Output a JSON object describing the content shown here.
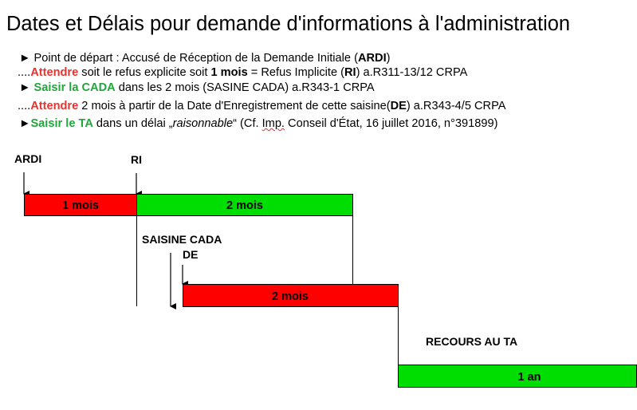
{
  "title": "Dates et Délais pour demande d'informations à l'administration",
  "lines": [
    {
      "prefix": "► ",
      "parts": [
        {
          "text": "Point de départ : Accusé de Réception de la Demande Initiale (",
          "style": ""
        },
        {
          "text": "ARDI",
          "style": "b"
        },
        {
          "text": ")",
          "style": ""
        }
      ]
    },
    {
      "prefix": "....",
      "parts": [
        {
          "text": "Attendre",
          "style": "red"
        },
        {
          "text": " soit le refus explicite soit ",
          "style": ""
        },
        {
          "text": "1 mois",
          "style": "b"
        },
        {
          "text": " = Refus Implicite (",
          "style": ""
        },
        {
          "text": "RI",
          "style": "b"
        },
        {
          "text": ") a.R311-13/12 CRPA",
          "style": ""
        }
      ]
    },
    {
      "prefix": "►  ",
      "parts": [
        {
          "text": "Saisir la CADA",
          "style": "green"
        },
        {
          "text": " dans les 2 mois (SASINE CADA) a.R343-1 CRPA",
          "style": ""
        }
      ]
    },
    {
      "prefix": "....",
      "parts": [
        {
          "text": "Attendre",
          "style": "red"
        },
        {
          "text": " 2 mois à partir de la Date d'Enregistrement de cette saisine(",
          "style": ""
        },
        {
          "text": "DE",
          "style": "b"
        },
        {
          "text": ") a.R343-4/5 CRPA",
          "style": ""
        }
      ]
    },
    {
      "prefix": "►",
      "parts": [
        {
          "text": "Saisir le TA",
          "style": "green"
        },
        {
          "text": " dans un délai „",
          "style": ""
        },
        {
          "text": "raisonnable",
          "style": "i"
        },
        {
          "text": "“ (Cf. ",
          "style": ""
        },
        {
          "text": "Imp.",
          "style": "squig"
        },
        {
          "text": " Conseil d'État, 16 juillet 2016, n°391899)",
          "style": ""
        }
      ]
    }
  ],
  "timeline": {
    "markers": {
      "ardi": "ARDI",
      "ri": "RI",
      "saisine_cada": "SAISINE CADA",
      "de": "DE",
      "recours_ta": "RECOURS AU TA"
    },
    "bars": [
      {
        "label": "1 mois",
        "color": "#ff0000"
      },
      {
        "label": "2 mois",
        "color": "#00dd00"
      },
      {
        "label": "2 mois",
        "color": "#ff0000"
      },
      {
        "label": "1 an",
        "color": "#00dd00"
      }
    ]
  }
}
